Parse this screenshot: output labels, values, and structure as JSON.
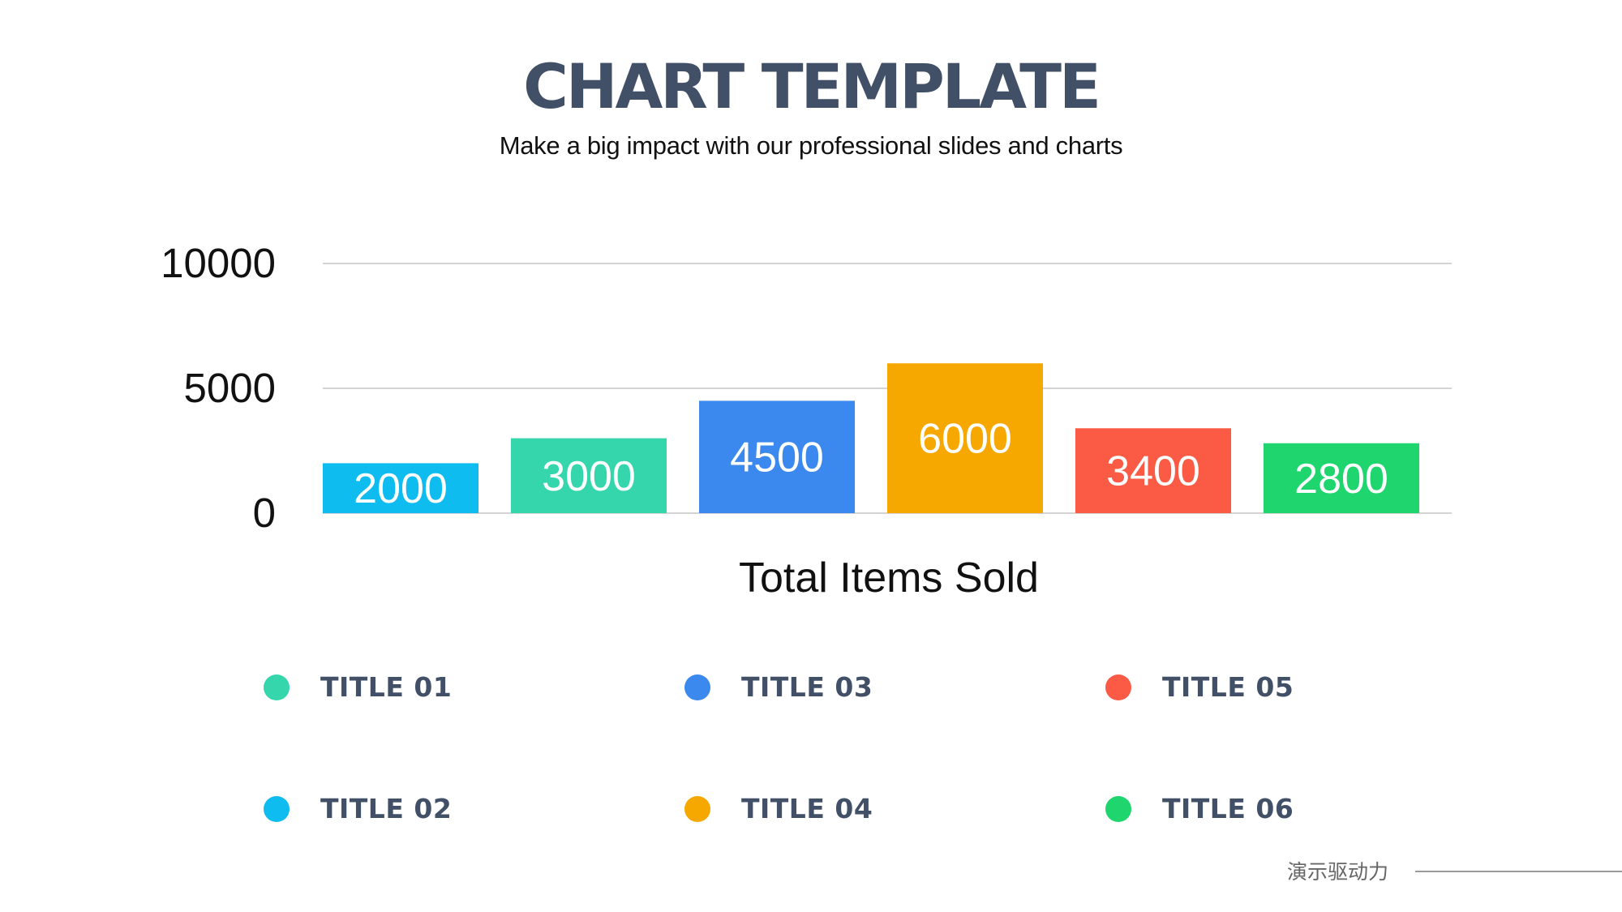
{
  "header": {
    "title": "CHART TEMPLATE",
    "subtitle": "Make a big impact with our professional slides and charts"
  },
  "chart_data": {
    "type": "bar",
    "title": "",
    "xlabel": "Total Items Sold",
    "ylabel": "",
    "ylim": [
      0,
      10000
    ],
    "yticks": [
      0,
      5000,
      10000
    ],
    "grid": true,
    "categories": [
      "TITLE 02",
      "TITLE 01",
      "TITLE 03",
      "TITLE 04",
      "TITLE 05",
      "TITLE 06"
    ],
    "values": [
      2000,
      3000,
      4500,
      6000,
      3400,
      2800
    ],
    "data_labels": [
      "2000",
      "3000",
      "4500",
      "6000",
      "3400",
      "2800"
    ],
    "colors": [
      "#0fbcf0",
      "#36d6ad",
      "#3b88ee",
      "#f6a800",
      "#fb5a44",
      "#1fd56d"
    ]
  },
  "legend": {
    "items": [
      {
        "label": "TITLE 01",
        "color": "#36d6ad"
      },
      {
        "label": "TITLE 03",
        "color": "#3b88ee"
      },
      {
        "label": "TITLE 05",
        "color": "#fb5a44"
      },
      {
        "label": "TITLE 02",
        "color": "#0fbcf0"
      },
      {
        "label": "TITLE 04",
        "color": "#f6a800"
      },
      {
        "label": "TITLE 06",
        "color": "#1fd56d"
      }
    ]
  },
  "footer": {
    "text": "演示驱动力"
  }
}
